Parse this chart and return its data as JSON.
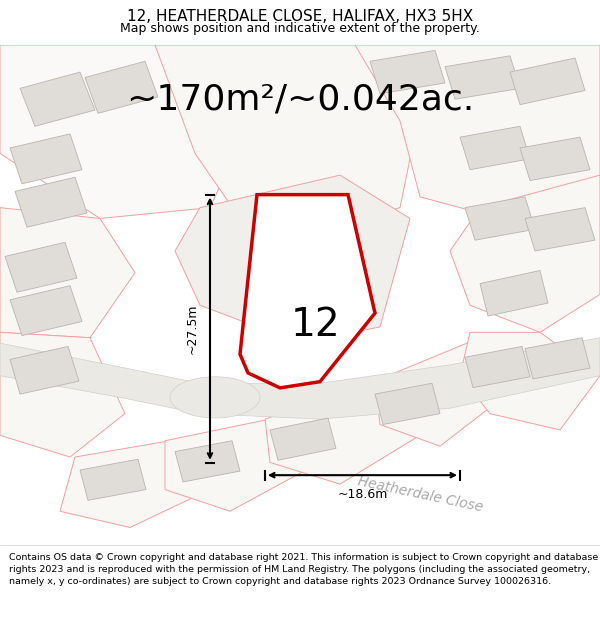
{
  "title": "12, HEATHERDALE CLOSE, HALIFAX, HX3 5HX",
  "subtitle": "Map shows position and indicative extent of the property.",
  "area_text": "~170m²/~0.042ac.",
  "width_label": "~18.6m",
  "height_label": "~27.5m",
  "number_label": "12",
  "street_label": "Heatherdale Close",
  "footer_text": "Contains OS data © Crown copyright and database right 2021. This information is subject to Crown copyright and database rights 2023 and is reproduced with the permission of HM Land Registry. The polygons (including the associated geometry, namely x, y co-ordinates) are subject to Crown copyright and database rights 2023 Ordnance Survey 100026316.",
  "bg_color": "#f7f6f2",
  "plot_color": "#cc0000",
  "plot_fill": "#ffffff",
  "building_fill": "#e0ddd8",
  "building_edge": "#b8b5b0",
  "outline_color": "#f0a0a0",
  "green_color": "#c8d8bf",
  "green_edge": "#a8c098",
  "road_fill": "#eceae4",
  "title_fontsize": 11,
  "subtitle_fontsize": 9,
  "area_fontsize": 26,
  "label_fontsize": 9,
  "number_fontsize": 28,
  "street_fontsize": 10,
  "footer_fontsize": 6.8
}
